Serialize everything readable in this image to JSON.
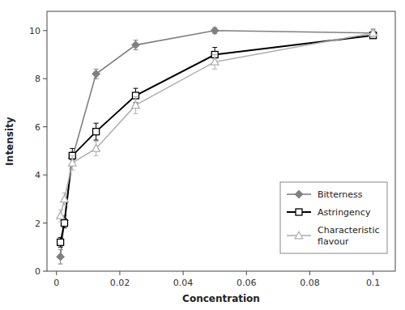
{
  "chart_data": {
    "type": "line",
    "x_label": "Concentration",
    "y_label": "Intensity",
    "x": [
      0.00125,
      0.0025,
      0.005,
      0.0125,
      0.025,
      0.05,
      0.1
    ],
    "series": [
      {
        "name": "Bitterness",
        "color": "#808080",
        "marker": "diamond",
        "values": [
          0.6,
          2.1,
          4.7,
          8.2,
          9.4,
          10.0,
          9.9
        ],
        "errors": [
          0.3,
          0.2,
          0.25,
          0.2,
          0.2,
          0.12,
          0.15
        ]
      },
      {
        "name": "Astringency",
        "color": "#000000",
        "marker": "open-square",
        "values": [
          1.2,
          2.0,
          4.8,
          5.8,
          7.3,
          9.0,
          9.8
        ],
        "errors": [
          0.2,
          0.2,
          0.3,
          0.35,
          0.3,
          0.3,
          0.12
        ]
      },
      {
        "name": "Characteristic\nflavour",
        "color": "#b0b0b0",
        "marker": "open-triangle",
        "values": [
          2.3,
          3.0,
          4.5,
          5.1,
          6.9,
          8.7,
          9.9
        ],
        "errors": [
          0.25,
          0.25,
          0.3,
          0.3,
          0.35,
          0.3,
          0.18
        ]
      }
    ],
    "xlim": [
      -0.003,
      0.107
    ],
    "ylim": [
      0,
      10.8
    ],
    "xticks": [
      0,
      0.02,
      0.04,
      0.06,
      0.08,
      0.1
    ],
    "yticks": [
      0,
      2,
      4,
      6,
      8,
      10
    ],
    "grid": false,
    "legend": "lower right"
  }
}
